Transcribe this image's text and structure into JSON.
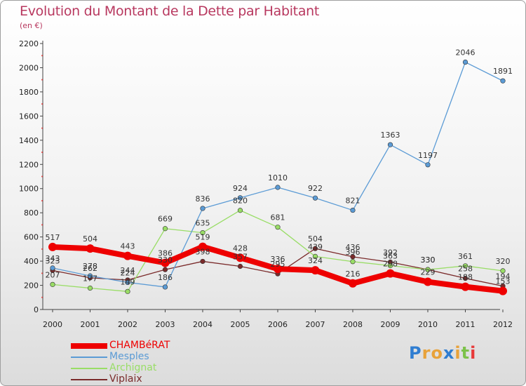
{
  "chart_data": {
    "type": "line",
    "title": "Evolution du Montant de la Dette par Habitant",
    "subtitle": "(en €)",
    "xlabel": "",
    "ylabel": "",
    "x": [
      "2000",
      "2001",
      "2002",
      "2003",
      "2004",
      "2005",
      "2006",
      "2007",
      "2008",
      "2009",
      "2010",
      "2011",
      "2012"
    ],
    "ylim": [
      0,
      2200
    ],
    "yticks": [
      0,
      200,
      400,
      600,
      800,
      1000,
      1200,
      1400,
      1600,
      1800,
      2000,
      2200
    ],
    "grid": false,
    "legend_position": "bottom-left",
    "series": [
      {
        "name": "CHAMBéRAT",
        "color": "#ee0000",
        "values": [
          517,
          504,
          443,
          386,
          519,
          428,
          336,
          324,
          216,
          298,
          229,
          188,
          153
        ]
      },
      {
        "name": "Mesples",
        "color": "#5b9bd5",
        "values": [
          343,
          278,
          224,
          186,
          836,
          924,
          1010,
          922,
          821,
          1363,
          1197,
          2046,
          1891
        ]
      },
      {
        "name": "Archignat",
        "color": "#99dd66",
        "values": [
          207,
          177,
          149,
          669,
          635,
          820,
          681,
          439,
          396,
          363,
          330,
          361,
          320
        ]
      },
      {
        "name": "Viplaix",
        "color": "#7a2a2a",
        "values": [
          323,
          262,
          244,
          330,
          398,
          357,
          295,
          504,
          436,
          392,
          330,
          258,
          194
        ]
      }
    ]
  },
  "brand": {
    "letters": [
      "P",
      "r",
      "o",
      "x",
      "i",
      "t",
      "i"
    ],
    "colors": [
      "#2f7dd1",
      "#e8a23a",
      "#e8a23a",
      "#2f7dd1",
      "#e8a23a",
      "#7cc24a",
      "#e83a3a"
    ]
  }
}
